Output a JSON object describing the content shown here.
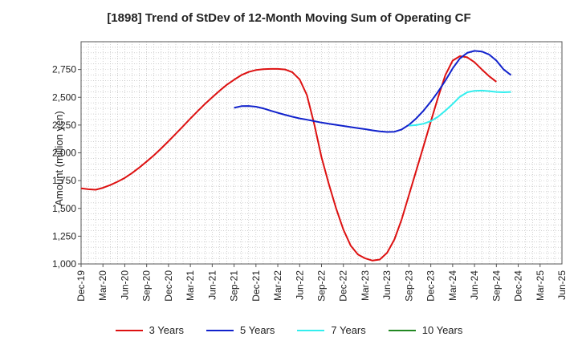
{
  "chart_data": {
    "type": "line",
    "title": "[1898]  Trend of StDev of 12-Month Moving Sum of Operating CF",
    "xlabel": "",
    "ylabel": "Amount (million yen)",
    "ylim": [
      1000,
      3000
    ],
    "y_ticks": [
      1000,
      1250,
      1500,
      1750,
      2000,
      2250,
      2500,
      2750
    ],
    "y_tick_labels": [
      "1,000",
      "1,250",
      "1,500",
      "1,750",
      "2,000",
      "2,250",
      "2,500",
      "2,750"
    ],
    "x_tick_labels": [
      "Dec-19",
      "Mar-20",
      "Jun-20",
      "Sep-20",
      "Dec-20",
      "Mar-21",
      "Jun-21",
      "Sep-21",
      "Dec-21",
      "Mar-22",
      "Jun-22",
      "Sep-22",
      "Dec-22",
      "Mar-23",
      "Jun-23",
      "Sep-23",
      "Dec-23",
      "Mar-24",
      "Jun-24",
      "Sep-24",
      "Dec-24",
      "Mar-25"
    ],
    "x_end_label": "Jun-25",
    "grid": true,
    "legend_position": "bottom",
    "series": [
      {
        "name": "3 Years",
        "color": "#dd1111",
        "start": "Dec-19",
        "values": [
          1680,
          1672,
          1668,
          1685,
          1710,
          1740,
          1775,
          1818,
          1868,
          1922,
          1978,
          2040,
          2105,
          2172,
          2240,
          2308,
          2375,
          2440,
          2500,
          2558,
          2612,
          2658,
          2700,
          2728,
          2745,
          2752,
          2755,
          2755,
          2750,
          2725,
          2660,
          2520,
          2260,
          1960,
          1720,
          1500,
          1310,
          1165,
          1085,
          1050,
          1030,
          1040,
          1100,
          1220,
          1400,
          1620,
          1840,
          2060,
          2280,
          2500,
          2700,
          2830,
          2870,
          2860,
          2815,
          2750,
          2690,
          2640
        ]
      },
      {
        "name": "5 Years",
        "color": "#1122cc",
        "start": "Sep-21",
        "values": [
          2405,
          2420,
          2422,
          2415,
          2400,
          2380,
          2360,
          2342,
          2325,
          2310,
          2298,
          2285,
          2272,
          2262,
          2252,
          2242,
          2232,
          2222,
          2213,
          2202,
          2193,
          2188,
          2190,
          2210,
          2252,
          2310,
          2380,
          2460,
          2550,
          2650,
          2760,
          2850,
          2900,
          2918,
          2912,
          2885,
          2830,
          2750,
          2700
        ]
      },
      {
        "name": "7 Years",
        "color": "#33eeee",
        "start": "Sep-23",
        "values": [
          2245,
          2250,
          2262,
          2285,
          2325,
          2380,
          2440,
          2505,
          2545,
          2558,
          2560,
          2555,
          2548,
          2545,
          2548
        ]
      },
      {
        "name": "10 Years",
        "color": "#228822",
        "start": "Sep-24",
        "values": []
      }
    ]
  }
}
